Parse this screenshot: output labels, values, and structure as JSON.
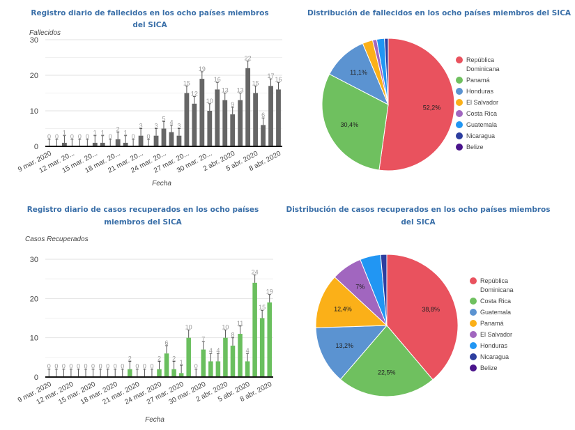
{
  "chart_data": [
    {
      "type": "bar",
      "title": [
        "Registro diario de fallecidos en los ocho países miembros",
        "del SICA"
      ],
      "xlabel": "Fecha",
      "ylabel": "Fallecidos",
      "ylim": [
        0,
        30
      ],
      "yticks": [
        "0",
        "10",
        "20",
        "30"
      ],
      "grid": true,
      "color": "#666666",
      "error_bars": true,
      "xtick_labels": [
        "9 mar. 2020",
        "12 mar. 20...",
        "15 mar. 20...",
        "18 mar. 20...",
        "21 mar. 20...",
        "24 mar. 20...",
        "27 mar. 20...",
        "30 mar. 20...",
        "2 abr. 2020",
        "5 abr. 2020",
        "8 abr. 2020"
      ],
      "categories": [
        "9 mar.",
        "10 mar.",
        "11 mar.",
        "12 mar.",
        "13 mar.",
        "14 mar.",
        "15 mar.",
        "16 mar.",
        "17 mar.",
        "18 mar.",
        "19 mar.",
        "20 mar.",
        "21 mar.",
        "22 mar.",
        "23 mar.",
        "24 mar.",
        "25 mar.",
        "26 mar.",
        "27 mar.",
        "28 mar.",
        "29 mar.",
        "30 mar.",
        "31 mar.",
        "1 abr.",
        "2 abr.",
        "3 abr.",
        "4 abr.",
        "5 abr.",
        "6 abr.",
        "7 abr.",
        "8 abr."
      ],
      "values": [
        0,
        0,
        1,
        0,
        0,
        0,
        1,
        1,
        0,
        2,
        1,
        0,
        3,
        0,
        3,
        5,
        4,
        3,
        15,
        12,
        19,
        10,
        16,
        13,
        9,
        13,
        22,
        15,
        6,
        17,
        16
      ]
    },
    {
      "type": "pie",
      "title": [
        "Distribución de fallecidos en los ocho países miembros del SICA"
      ],
      "legend": "right",
      "categories": [
        "República Dominicana",
        "Panamá",
        "Honduras",
        "El Salvador",
        "Costa Rica",
        "Guatemala",
        "Nicaragua",
        "Belize"
      ],
      "legend_labels": [
        [
          "República",
          "Dominicana"
        ],
        [
          "Panamá"
        ],
        [
          "Honduras"
        ],
        [
          "El Salvador"
        ],
        [
          "Costa Rica"
        ],
        [
          "Guatemala"
        ],
        [
          "Nicaragua"
        ],
        [
          "Belize"
        ]
      ],
      "values": [
        52.2,
        30.4,
        11.1,
        2.5,
        1.0,
        1.9,
        0.9,
        0
      ],
      "slice_labels": [
        "52,2%",
        "30,4%",
        "11,1%",
        "",
        "",
        "",
        "",
        ""
      ],
      "colors": [
        "#e9525e",
        "#6fc05f",
        "#5b93d1",
        "#fbb018",
        "#a166bf",
        "#2196f3",
        "#2d3e9f",
        "#4a148c"
      ]
    },
    {
      "type": "bar",
      "title": [
        "Registro diario de casos recuperados en los ocho países",
        "miembros del SICA"
      ],
      "xlabel": "Fecha",
      "ylabel": "Casos Recuperados",
      "ylim": [
        0,
        30
      ],
      "yticks": [
        "0",
        "10",
        "20",
        "30"
      ],
      "grid": true,
      "color": "#6abf5e",
      "error_bars": true,
      "xtick_labels": [
        "9 mar. 2020",
        "12 mar. 2020",
        "15 mar. 2020",
        "18 mar. 2020",
        "21 mar. 2020",
        "24 mar. 2020",
        "27 mar. 2020",
        "30 mar. 2020",
        "2 abr. 2020",
        "5 abr. 2020",
        "8 abr. 2020"
      ],
      "categories": [
        "9 mar.",
        "10 mar.",
        "11 mar.",
        "12 mar.",
        "13 mar.",
        "14 mar.",
        "15 mar.",
        "16 mar.",
        "17 mar.",
        "18 mar.",
        "19 mar.",
        "20 mar.",
        "21 mar.",
        "22 mar.",
        "23 mar.",
        "24 mar.",
        "25 mar.",
        "26 mar.",
        "27 mar.",
        "28 mar.",
        "29 mar.",
        "30 mar.",
        "31 mar.",
        "1 abr.",
        "2 abr.",
        "3 abr.",
        "4 abr.",
        "5 abr.",
        "6 abr.",
        "7 abr.",
        "8 abr."
      ],
      "values": [
        0,
        0,
        0,
        0,
        0,
        0,
        0,
        0,
        0,
        0,
        0,
        2,
        0,
        0,
        0,
        2,
        6,
        2,
        1,
        10,
        0,
        7,
        4,
        4,
        10,
        8,
        11,
        4,
        24,
        15,
        19
      ]
    },
    {
      "type": "pie",
      "title": [
        "Distribución de casos recuperados en los ocho países miembros",
        "del SICA"
      ],
      "legend": "right",
      "categories": [
        "República Dominicana",
        "Costa Rica",
        "Guatemala",
        "Panamá",
        "El Salvador",
        "Honduras",
        "Nicaragua",
        "Belize"
      ],
      "legend_labels": [
        [
          "República",
          "Dominicana"
        ],
        [
          "Costa Rica"
        ],
        [
          "Guatemala"
        ],
        [
          "Panamá"
        ],
        [
          "El Salvador"
        ],
        [
          "Honduras"
        ],
        [
          "Nicaragua"
        ],
        [
          "Belize"
        ]
      ],
      "values": [
        38.8,
        22.5,
        13.2,
        12.4,
        7.0,
        4.7,
        1.4,
        0
      ],
      "slice_labels": [
        "38,8%",
        "22,5%",
        "13,2%",
        "12,4%",
        "7%",
        "",
        "",
        ""
      ],
      "colors": [
        "#e9525e",
        "#6fc05f",
        "#5b93d1",
        "#fbb018",
        "#a166bf",
        "#2196f3",
        "#2d3e9f",
        "#4a148c"
      ]
    }
  ]
}
